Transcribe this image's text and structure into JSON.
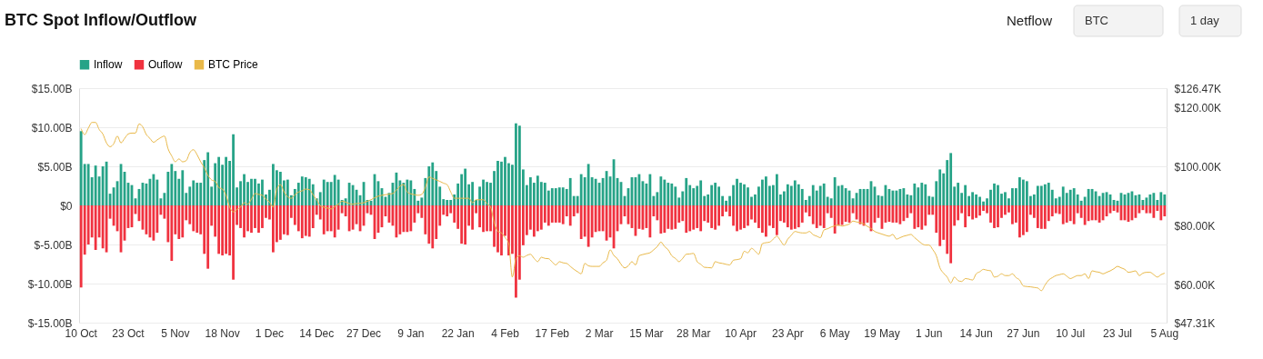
{
  "chart_data": {
    "type": "bar",
    "title": "BTC Spot Inflow/Outflow",
    "annotations": [
      "Netflow",
      "BTC",
      "1 day"
    ],
    "categories": [
      "10 Oct",
      null,
      null,
      null,
      null,
      null,
      null,
      null,
      null,
      null,
      null,
      null,
      null,
      "23 Oct",
      null,
      null,
      null,
      null,
      null,
      null,
      null,
      null,
      null,
      null,
      null,
      null,
      "5 Nov",
      null,
      null,
      null,
      null,
      null,
      null,
      null,
      null,
      null,
      null,
      null,
      null,
      "18 Nov",
      null,
      null,
      null,
      null,
      null,
      null,
      null,
      null,
      null,
      null,
      null,
      null,
      "1 Dec",
      null,
      null,
      null,
      null,
      null,
      null,
      null,
      null,
      null,
      null,
      null,
      null,
      "14 Dec",
      null,
      null,
      null,
      null,
      null,
      null,
      null,
      null,
      null,
      null,
      null,
      null,
      "27 Dec",
      null,
      null,
      null,
      null,
      null,
      null,
      null,
      null,
      null,
      null,
      null,
      null,
      "9 Jan",
      null,
      null,
      null,
      null,
      null,
      null,
      null,
      null,
      null,
      null,
      null,
      null,
      "22 Jan",
      null,
      null,
      null,
      null,
      null,
      null,
      null,
      null,
      null,
      null,
      null,
      null,
      "4 Feb",
      null,
      null,
      null,
      null,
      null,
      null,
      null,
      null,
      null,
      null,
      null,
      null,
      "17 Feb",
      null,
      null,
      null,
      null,
      null,
      null,
      null,
      null,
      null,
      null,
      null,
      null,
      "2 Mar",
      null,
      null,
      null,
      null,
      null,
      null,
      null,
      null,
      null,
      null,
      null,
      null,
      "15 Mar",
      null,
      null,
      null,
      null,
      null,
      null,
      null,
      null,
      null,
      null,
      null,
      null,
      "28 Mar",
      null,
      null,
      null,
      null,
      null,
      null,
      null,
      null,
      null,
      null,
      null,
      null,
      "10 Apr",
      null,
      null,
      null,
      null,
      null,
      null,
      null,
      null,
      null,
      null,
      null,
      null,
      "23 Apr",
      null,
      null,
      null,
      null,
      null,
      null,
      null,
      null,
      null,
      null,
      null,
      null,
      "6 May",
      null,
      null,
      null,
      null,
      null,
      null,
      null,
      null,
      null,
      null,
      null,
      null,
      "19 May",
      null,
      null,
      null,
      null,
      null,
      null,
      null,
      null,
      null,
      null,
      null,
      null,
      "1 Jun",
      null,
      null,
      null,
      null,
      null,
      null,
      null,
      null,
      null,
      null,
      null,
      null,
      "14 Jun",
      null,
      null,
      null,
      null,
      null,
      null,
      null,
      null,
      null,
      null,
      null,
      null,
      "27 Jun",
      null,
      null,
      null,
      null,
      null,
      null,
      null,
      null,
      null,
      null,
      null,
      null,
      "10 Jul",
      null,
      null,
      null,
      null,
      null,
      null,
      null,
      null,
      null,
      null,
      null,
      null,
      "23 Jul",
      null,
      null,
      null,
      null,
      null,
      null,
      null,
      null,
      null,
      null,
      null,
      null,
      "5 Aug"
    ],
    "series": [
      {
        "name": "Inflow",
        "color": "#26a387",
        "values": [
          9.5,
          5.3,
          5.3,
          3.6,
          5.1,
          3.7,
          5.0,
          5.6,
          1.5,
          2.3,
          3.1,
          5.3,
          4.3,
          2.9,
          2.6,
          0.9,
          2.1,
          2.9,
          2.8,
          3.4,
          4.0,
          3.3,
          0.9,
          1.6,
          4.3,
          5.3,
          4.4,
          3.4,
          4.5,
          1.6,
          2.4,
          3.2,
          2.9,
          2.9,
          5.8,
          6.8,
          2.4,
          5.4,
          6.2,
          5.2,
          6.2,
          5.7,
          9.1,
          2.3,
          3.1,
          4.0,
          3.0,
          3.4,
          3.4,
          2.8,
          3.3,
          1.4,
          2.0,
          5.3,
          4.5,
          4.3,
          3.2,
          3.3,
          1.3,
          2.1,
          2.9,
          3.7,
          3.6,
          3.4,
          2.7,
          0.9,
          1.7,
          3.3,
          3.0,
          3.0,
          3.9,
          3.3,
          0.7,
          0.9,
          2.9,
          2.6,
          2.0,
          1.3,
          3.0,
          0.7,
          0.6,
          4.0,
          3.1,
          2.2,
          1.1,
          1.6,
          2.9,
          4.2,
          3.2,
          2.9,
          3.3,
          3.2,
          2.1,
          0.6,
          1.0,
          3.5,
          5.0,
          5.5,
          4.4,
          2.4,
          0.8,
          0.7,
          0.7,
          1.4,
          2.8,
          4.0,
          4.7,
          2.7,
          3.0,
          0.7,
          2.4,
          3.3,
          3.0,
          2.9,
          4.4,
          5.7,
          5.6,
          6.2,
          5.4,
          5.2,
          10.5,
          10.2,
          4.6,
          2.6,
          3.6,
          2.9,
          3.8,
          3.0,
          2.9,
          1.9,
          2.2,
          2.2,
          2.3,
          2.3,
          2.1,
          3.5,
          1.2,
          1.2,
          4.0,
          3.6,
          5.3,
          3.6,
          3.4,
          2.9,
          3.5,
          4.4,
          3.7,
          5.9,
          3.5,
          3.0,
          1.2,
          2.2,
          3.6,
          3.6,
          4.0,
          3.1,
          2.8,
          4.0,
          1.2,
          1.7,
          3.7,
          3.3,
          2.9,
          2.8,
          2.4,
          1.0,
          1.8,
          3.5,
          2.6,
          2.2,
          2.5,
          3.2,
          1.2,
          1.4,
          2.6,
          2.9,
          2.4,
          1.2,
          0.6,
          1.2,
          2.6,
          3.4,
          2.9,
          2.7,
          2.3,
          1.1,
          1.4,
          2.4,
          3.3,
          3.7,
          2.5,
          2.6,
          4.0,
          1.4,
          1.8,
          2.7,
          2.5,
          3.2,
          2.7,
          2.1,
          0.7,
          1.2,
          2.6,
          1.9,
          2.5,
          2.8,
          1.1,
          0.9,
          3.6,
          2.5,
          2.6,
          2.2,
          1.9,
          0.9,
          1.6,
          2.1,
          2.1,
          2.1,
          3.1,
          2.4,
          1.3,
          1.2,
          2.6,
          2.1,
          1.9,
          1.9,
          2.1,
          2.2,
          1.4,
          1.3,
          2.8,
          2.3,
          2.9,
          2.7,
          1.2,
          1.1,
          3.1,
          4.6,
          4.1,
          5.8,
          6.7,
          2.4,
          2.9,
          1.6,
          2.6,
          1.2,
          1.7,
          1.4,
          1.1,
          0.5,
          0.9,
          2.0,
          2.8,
          2.6,
          1.5,
          1.7,
          0.9,
          2.2,
          2.2,
          3.6,
          3.3,
          3.1,
          1.2,
          1.4,
          2.5,
          2.5,
          2.7,
          2.9,
          2.0,
          0.9,
          1.1,
          2.4,
          1.6,
          2.0,
          2.2,
          1.4,
          0.6,
          1.1,
          2.1,
          2.1,
          1.8,
          1.2,
          1.6,
          1.7,
          1.4,
          0.7,
          0.6,
          1.6,
          1.4,
          1.6,
          1.8,
          1.3,
          1.4,
          0.7,
          1.0,
          1.4,
          1.6,
          0.7,
          1.7,
          1.4
        ]
      },
      {
        "name": "Ouflow",
        "color": "#f0323f",
        "values": [
          -10.5,
          -6.3,
          -5.0,
          -4.1,
          -5.7,
          -4.1,
          -5.5,
          -6.0,
          -1.7,
          -2.6,
          -3.3,
          -6.0,
          -4.5,
          -2.9,
          -2.8,
          -1.1,
          -2.0,
          -3.1,
          -3.7,
          -4.1,
          -4.5,
          -3.5,
          -1.2,
          -1.7,
          -4.7,
          -7.1,
          -3.7,
          -4.3,
          -4.1,
          -1.9,
          -2.4,
          -3.3,
          -3.5,
          -3.7,
          -6.2,
          -8.1,
          -2.6,
          -4.0,
          -6.2,
          -6.4,
          -6.2,
          -6.4,
          -9.5,
          -2.5,
          -2.9,
          -4.1,
          -3.3,
          -3.5,
          -2.9,
          -3.5,
          -2.9,
          -1.6,
          -1.8,
          -6.0,
          -4.7,
          -4.4,
          -3.7,
          -3.8,
          -1.6,
          -2.5,
          -3.3,
          -4.2,
          -3.9,
          -4.0,
          -2.9,
          -1.2,
          -1.8,
          -3.7,
          -3.3,
          -3.3,
          -4.1,
          -3.1,
          -1.0,
          -1.4,
          -3.3,
          -3.1,
          -2.4,
          -3.3,
          -2.6,
          -1.0,
          -1.2,
          -4.3,
          -3.5,
          -2.8,
          -1.4,
          -2.2,
          -2.6,
          -4.1,
          -3.7,
          -3.4,
          -3.4,
          -3.3,
          -2.2,
          -1.0,
          -1.6,
          -3.7,
          -4.9,
          -5.5,
          -4.3,
          -2.6,
          -1.2,
          -1.4,
          -1.0,
          -2.2,
          -3.0,
          -4.9,
          -5.0,
          -2.6,
          -3.1,
          -1.0,
          -2.8,
          -3.4,
          -3.3,
          -3.3,
          -5.3,
          -6.0,
          -6.4,
          -3.9,
          -6.4,
          -6.2,
          -11.8,
          -9.5,
          -5.1,
          -3.8,
          -3.1,
          -4.0,
          -3.3,
          -3.1,
          -2.2,
          -2.6,
          -2.2,
          -2.2,
          -2.2,
          -2.4,
          -1.4,
          -2.6,
          -1.4,
          -1.0,
          -4.3,
          -4.0,
          -5.3,
          -4.1,
          -3.4,
          -3.3,
          -3.3,
          -4.5,
          -4.1,
          -5.5,
          -3.3,
          -2.4,
          -1.4,
          -2.4,
          -2.9,
          -3.9,
          -3.0,
          -3.1,
          -2.9,
          -4.1,
          -1.4,
          -1.9,
          -3.6,
          -3.5,
          -3.0,
          -3.1,
          -3.0,
          -2.2,
          -2.0,
          -3.5,
          -3.3,
          -3.1,
          -2.9,
          -3.3,
          -2.0,
          -2.2,
          -2.9,
          -3.1,
          -2.6,
          -1.4,
          -0.8,
          -1.4,
          -2.6,
          -3.3,
          -3.1,
          -2.9,
          -2.6,
          -1.8,
          -2.2,
          -2.9,
          -3.5,
          -4.0,
          -2.6,
          -2.9,
          -3.8,
          -2.0,
          -2.2,
          -2.8,
          -3.1,
          -3.0,
          -2.8,
          -2.2,
          -0.9,
          -1.4,
          -2.4,
          -2.9,
          -2.6,
          -2.9,
          -1.0,
          -1.6,
          -3.6,
          -2.6,
          -2.5,
          -2.1,
          -2.2,
          -1.0,
          -1.8,
          -2.4,
          -2.6,
          -2.2,
          -3.3,
          -2.2,
          -1.6,
          -3.0,
          -2.2,
          -2.1,
          -2.2,
          -2.2,
          -2.4,
          -2.0,
          -1.6,
          -1.0,
          -3.0,
          -2.8,
          -3.1,
          -2.6,
          -1.2,
          -1.2,
          -3.5,
          -5.2,
          -4.4,
          -6.2,
          -7.4,
          -2.6,
          -1.9,
          -1.0,
          -2.8,
          -1.4,
          -1.8,
          -1.6,
          -1.3,
          -0.7,
          -1.0,
          -2.2,
          -2.9,
          -2.8,
          -1.6,
          -1.2,
          -0.9,
          -2.4,
          -2.2,
          -4.1,
          -3.8,
          -3.4,
          -1.2,
          -1.6,
          -2.9,
          -3.0,
          -3.0,
          -2.0,
          -1.4,
          -1.0,
          -1.1,
          -2.4,
          -2.2,
          -2.0,
          -2.4,
          -1.0,
          -1.6,
          -2.5,
          -2.0,
          -1.9,
          -1.9,
          -2.2,
          -1.9,
          -1.4,
          -1.0,
          -0.7,
          -0.9,
          -1.9,
          -1.9,
          -2.1,
          -1.9,
          -1.6,
          -1.0,
          -0.6,
          -1.0,
          -1.0,
          -1.6,
          -0.7,
          -1.9,
          -1.4
        ]
      },
      {
        "name": "BTC Price",
        "type": "line",
        "axis": "y2",
        "color": "#e9b949",
        "values": [
          112.8,
          110.8,
          113,
          114.9,
          114.9,
          112.5,
          111,
          108,
          106.7,
          107.7,
          110.3,
          108,
          109.5,
          111,
          111.3,
          111.3,
          114.4,
          113.4,
          110.8,
          109.5,
          108.2,
          109,
          109.8,
          110.3,
          106,
          103.6,
          101.6,
          102.6,
          101.6,
          102,
          104.7,
          105.7,
          104,
          101.6,
          99.6,
          97,
          95.5,
          95,
          92.9,
          92.4,
          90.3,
          86.3,
          84.7,
          85.5,
          86.3,
          87.8,
          87.3,
          89,
          90.9,
          90.6,
          90.3,
          89,
          88,
          86.3,
          92.4,
          93.9,
          91.5,
          89.8,
          89.3,
          90.5,
          91.4,
          91.8,
          92.4,
          92.2,
          90.5,
          88.8,
          86.8,
          86.3,
          86,
          85.7,
          86.5,
          87.3,
          88.3,
          88,
          87.5,
          87.3,
          87.5,
          87.6,
          87.8,
          88.3,
          88.8,
          89.5,
          90,
          90.3,
          90.5,
          90.7,
          90.9,
          92,
          93.4,
          93.9,
          91.4,
          90.8,
          90.5,
          90.3,
          90.6,
          93,
          96.5,
          96,
          95.5,
          95,
          94.4,
          93.9,
          91.4,
          89.3,
          89.3,
          89.3,
          89.3,
          89.3,
          87.8,
          88.8,
          88.8,
          88.8,
          87.5,
          86.3,
          81.1,
          78.1,
          77.6,
          76,
          74,
          62.7,
          68.9,
          69.9,
          69.4,
          70,
          70.4,
          69,
          67.9,
          69.4,
          69,
          68.9,
          67.8,
          66.8,
          67.9,
          67.5,
          67.3,
          66.3,
          65.3,
          64.5,
          63.8,
          67.3,
          66.5,
          66.3,
          66.3,
          66.3,
          67.5,
          68.4,
          71.9,
          70,
          68.9,
          67,
          65.8,
          66.5,
          67.9,
          66.8,
          69.9,
          70.3,
          70.6,
          70.9,
          71.9,
          73,
          74.5,
          73,
          71.9,
          69.9,
          69,
          67.9,
          69,
          70.4,
          70.5,
          70.7,
          67.9,
          67,
          66,
          65.9,
          65.8,
          67.9,
          67.5,
          67.3,
          67,
          66.8,
          68.4,
          68.6,
          68.9,
          71.4,
          70.9,
          72.4,
          71.5,
          70.4,
          74,
          74.3,
          74.5,
          75.5,
          76.5,
          75,
          73.5,
          75.5,
          76.8,
          78.1,
          77.8,
          77.6,
          77.6,
          78.1,
          77,
          76.5,
          76,
          78.6,
          79,
          79.6,
          80,
          80.3,
          79.9,
          80.2,
          80.6,
          81.6,
          81.3,
          81.1,
          80.6,
          79.8,
          79.1,
          78.1,
          77.6,
          77.2,
          76.8,
          76.5,
          77.1,
          75.5,
          76,
          76.5,
          76.8,
          77.1,
          76,
          75,
          74,
          73.5,
          73.5,
          72,
          69.9,
          65.8,
          64,
          62.7,
          60.7,
          62.7,
          61.5,
          61.2,
          62.2,
          62,
          61.7,
          63.8,
          64.5,
          65.3,
          65,
          64.8,
          62.7,
          63,
          63.8,
          63.2,
          63.2,
          63.8,
          62.5,
          61.7,
          59.7,
          59.5,
          59.4,
          59.2,
          59,
          58.1,
          60,
          61.7,
          62.5,
          63.2,
          63.5,
          63.8,
          63,
          62.2,
          62.7,
          63.2,
          63.2,
          63.8,
          62.2,
          64.8,
          64.5,
          64.3,
          63.8,
          64.3,
          64.8,
          65.5,
          66.3,
          65.8,
          65.3,
          64.3,
          64.5,
          64.8,
          63.2,
          64,
          64.3,
          64.3,
          63.5,
          62.7,
          63.5,
          64
        ]
      }
    ],
    "ylim": [
      -15,
      15
    ],
    "yticks": [
      {
        "value": -15,
        "label": "$-15.00B"
      },
      {
        "value": -10,
        "label": "$-10.00B"
      },
      {
        "value": -5,
        "label": "$-5.00B"
      },
      {
        "value": 0,
        "label": "$0"
      },
      {
        "value": 5,
        "label": "$5.00B"
      },
      {
        "value": 10,
        "label": "$10.00B"
      },
      {
        "value": 15,
        "label": "$15.00B"
      }
    ],
    "y2lim": [
      47.31,
      126.47
    ],
    "y2ticks": [
      {
        "value": 47.31,
        "label": "$47.31K"
      },
      {
        "value": 60,
        "label": "$60.00K"
      },
      {
        "value": 80,
        "label": "$80.00K"
      },
      {
        "value": 100,
        "label": "$100.00K"
      },
      {
        "value": 120,
        "label": "$120.00K"
      },
      {
        "value": 126.47,
        "label": "$126.47K"
      }
    ],
    "grid": "y",
    "legend": "top",
    "marker": "none",
    "stacked": true
  }
}
